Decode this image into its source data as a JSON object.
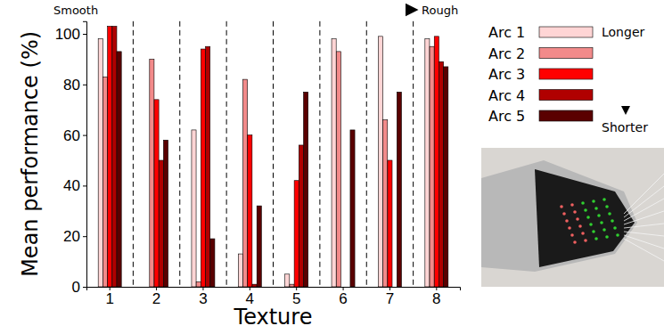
{
  "chart_data": {
    "type": "bar",
    "x_label": "Texture",
    "y_label": "Mean performance (%)",
    "x_direction": {
      "from": "Smooth",
      "to": "Rough"
    },
    "legend_direction": {
      "from": "Longer",
      "to": "Shorter"
    },
    "categories": [
      "1",
      "2",
      "3",
      "4",
      "5",
      "6",
      "7",
      "8"
    ],
    "series": [
      {
        "name": "Arc 1",
        "color": "#ffd5d5",
        "values": [
          98,
          0,
          62,
          13,
          5,
          98,
          99,
          98
        ]
      },
      {
        "name": "Arc 2",
        "color": "#f28a8a",
        "values": [
          83,
          90,
          2,
          82,
          1,
          93,
          66,
          95
        ]
      },
      {
        "name": "Arc 3",
        "color": "#ff0000",
        "values": [
          103,
          74,
          94,
          60,
          42,
          0,
          50,
          99
        ]
      },
      {
        "name": "Arc 4",
        "color": "#b00000",
        "values": [
          103,
          50,
          95,
          1,
          56,
          0,
          0,
          89
        ]
      },
      {
        "name": "Arc 5",
        "color": "#5a0000",
        "values": [
          93,
          58,
          19,
          32,
          77,
          62,
          77,
          87
        ]
      }
    ],
    "ylim": [
      0,
      105
    ],
    "yticks": [
      0,
      20,
      40,
      60,
      80,
      100
    ],
    "legend": "right",
    "grid": false
  }
}
